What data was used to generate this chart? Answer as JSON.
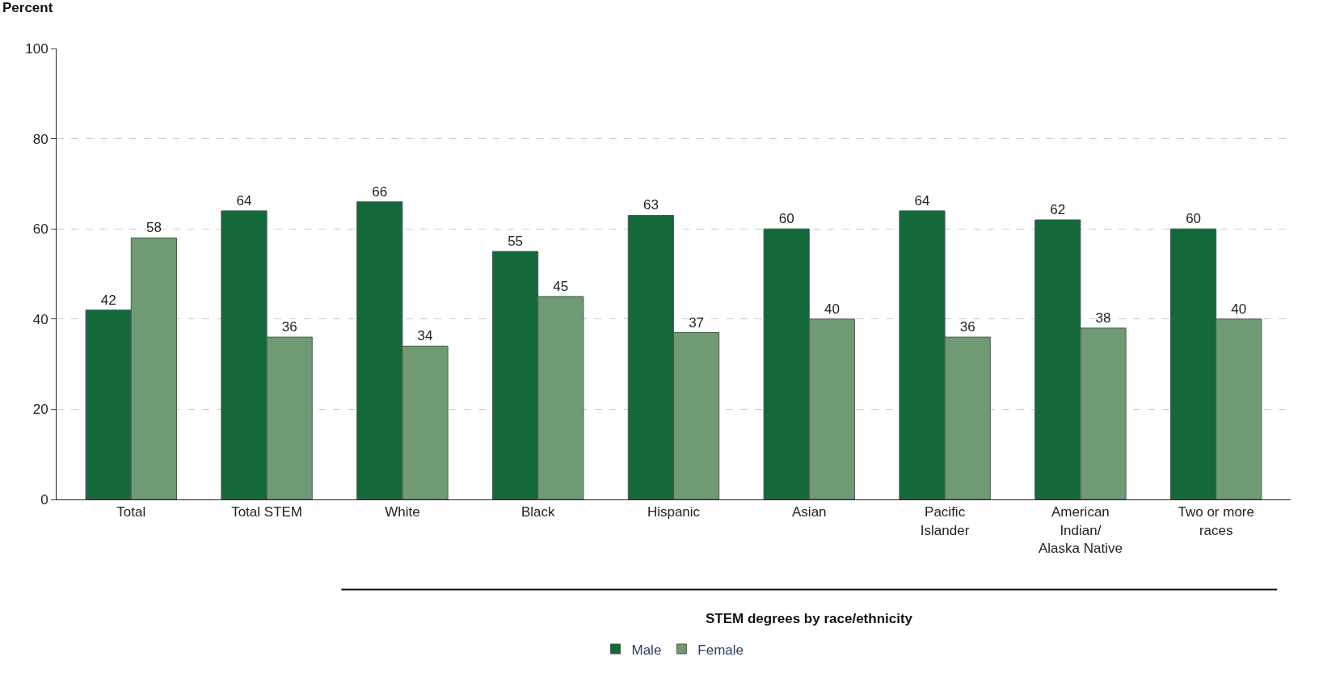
{
  "chart_data": {
    "type": "bar",
    "ylabel": "Percent",
    "categories": [
      "Total",
      "Total STEM",
      "White",
      "Black",
      "Hispanic",
      "Asian",
      "Pacific Islander",
      "American Indian/ Alaska Native",
      "Two or more races"
    ],
    "series": [
      {
        "name": "Male",
        "color": "#13693a",
        "values": [
          42,
          64,
          66,
          55,
          63,
          60,
          64,
          62,
          60
        ]
      },
      {
        "name": "Female",
        "color": "#6e9a74",
        "values": [
          58,
          36,
          34,
          45,
          37,
          40,
          36,
          38,
          40
        ]
      }
    ],
    "ylim": [
      0,
      100
    ],
    "yticks": [
      0,
      20,
      40,
      60,
      80,
      100
    ],
    "grid": "y",
    "legend": "bottom",
    "data_labels": true,
    "annotations": [
      "STEM degrees by race/ethnicity"
    ]
  }
}
